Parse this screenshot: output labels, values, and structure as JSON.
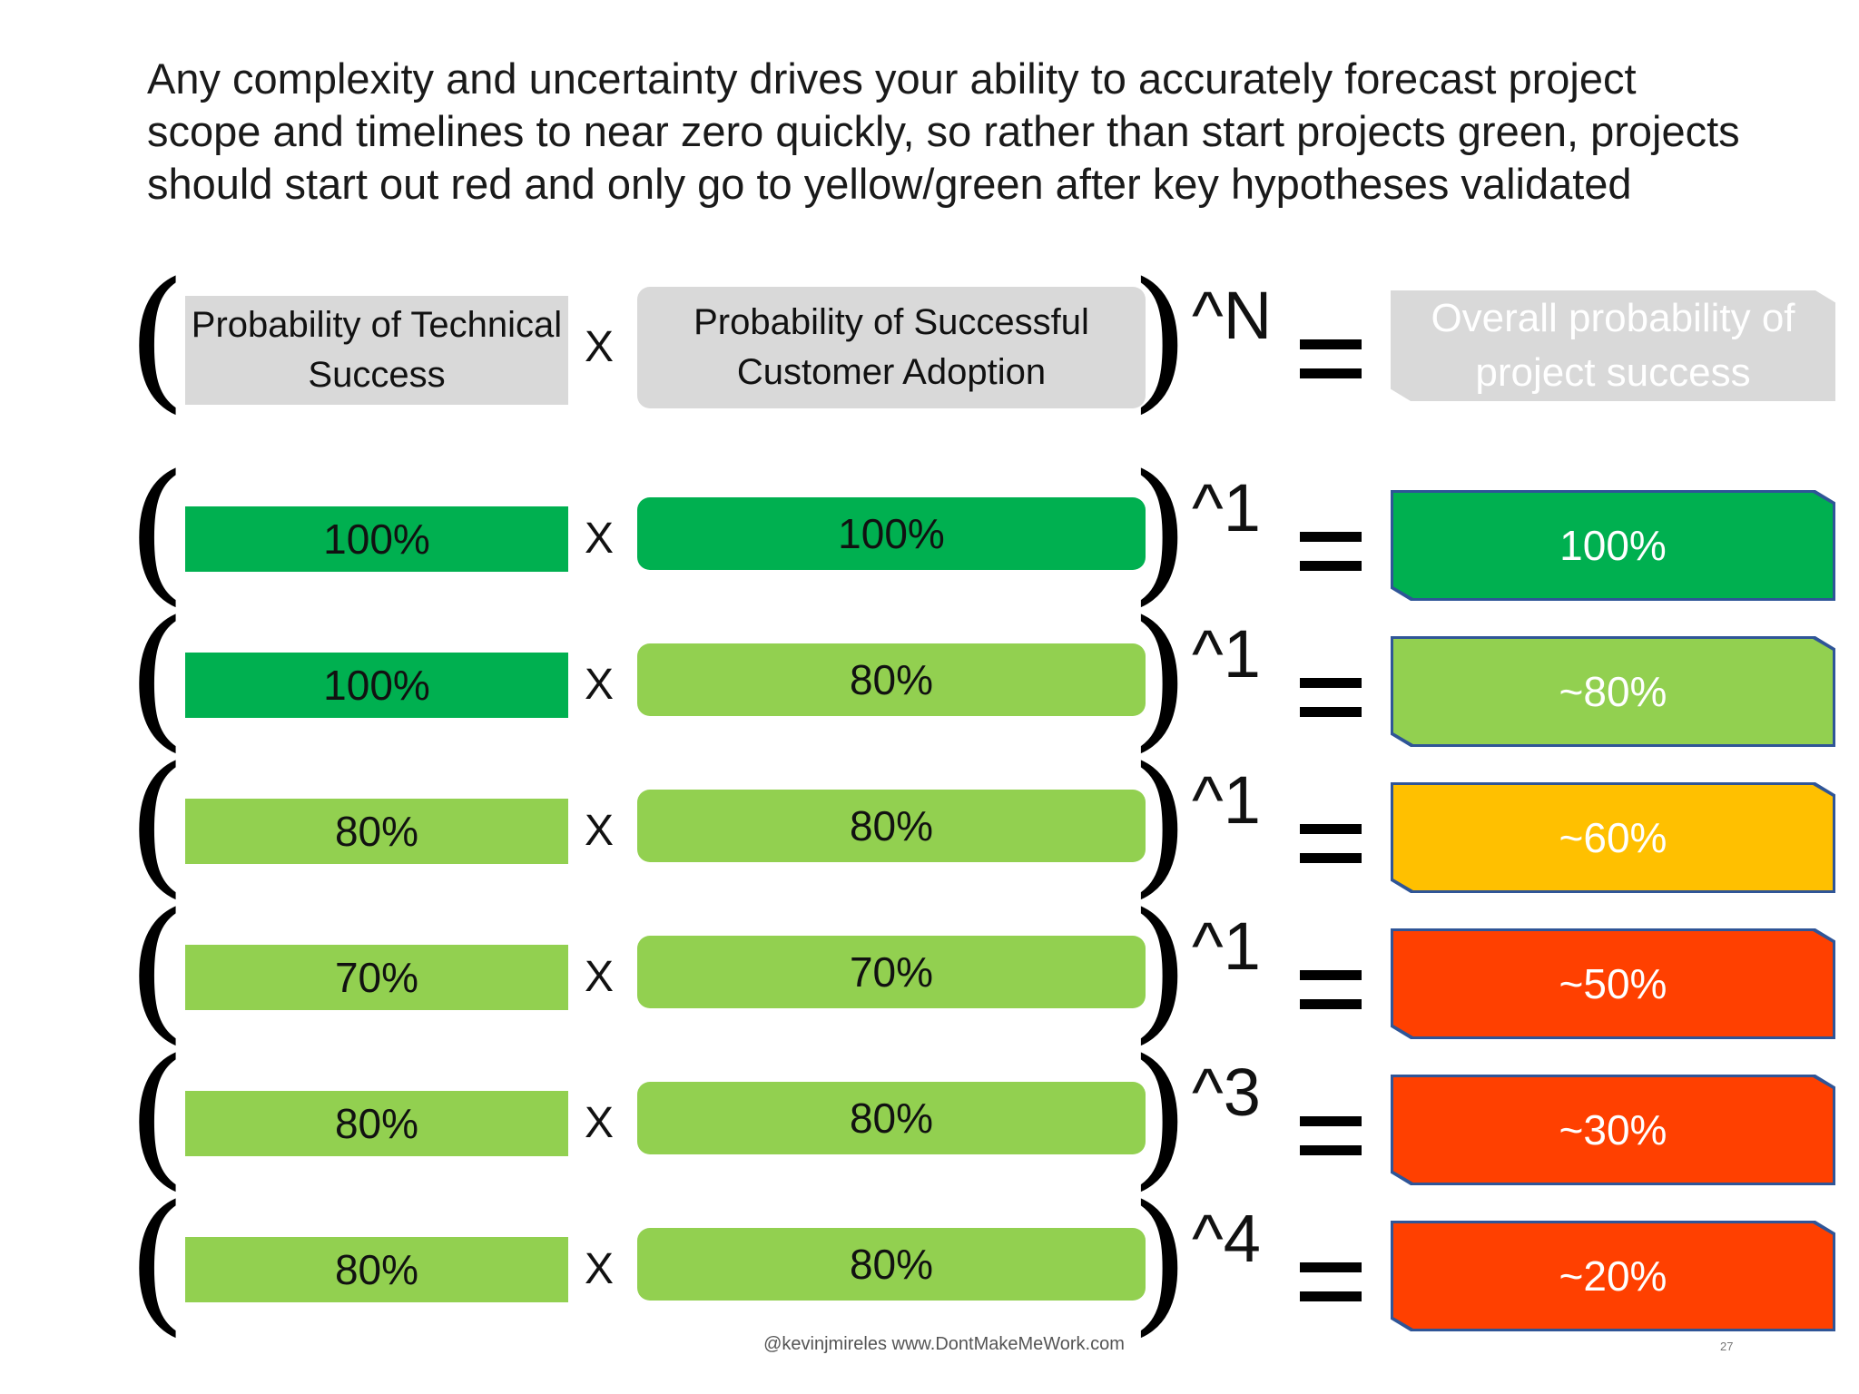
{
  "title_lines": [
    "Any complexity and uncertainty drives your ability to accurately forecast project",
    "scope and timelines to near zero quickly, so rather than start projects green, projects",
    "should start out red and only go to yellow/green after key hypotheses validated"
  ],
  "symbols": {
    "open": "(",
    "close": ")",
    "times": "X"
  },
  "header": {
    "tech": "Probability of Technical Success",
    "cust": "Probability of Successful Customer Adoption",
    "exp": "^N",
    "result": "Overall probability of project success"
  },
  "colors": {
    "dark_green": "#00B050",
    "light_green": "#92D050",
    "yellow": "#FFC000",
    "red": "#FF4000",
    "header_gray": "#D9D9D9",
    "result_border": "#2F5597"
  },
  "rows": [
    {
      "tech": "100%",
      "tech_color": "dark_green",
      "cust": "100%",
      "cust_color": "dark_green",
      "exp": "^1",
      "result": "100%",
      "result_color": "dark_green"
    },
    {
      "tech": "100%",
      "tech_color": "dark_green",
      "cust": "80%",
      "cust_color": "light_green",
      "exp": "^1",
      "result": "~80%",
      "result_color": "light_green"
    },
    {
      "tech": "80%",
      "tech_color": "light_green",
      "cust": "80%",
      "cust_color": "light_green",
      "exp": "^1",
      "result": "~60%",
      "result_color": "yellow"
    },
    {
      "tech": "70%",
      "tech_color": "light_green",
      "cust": "70%",
      "cust_color": "light_green",
      "exp": "^1",
      "result": "~50%",
      "result_color": "red"
    },
    {
      "tech": "80%",
      "tech_color": "light_green",
      "cust": "80%",
      "cust_color": "light_green",
      "exp": "^3",
      "result": "~30%",
      "result_color": "red"
    },
    {
      "tech": "80%",
      "tech_color": "light_green",
      "cust": "80%",
      "cust_color": "light_green",
      "exp": "^4",
      "result": "~20%",
      "result_color": "red"
    }
  ],
  "footer": "@kevinjmireles www.DontMakeMeWork.com",
  "page_number": "27"
}
